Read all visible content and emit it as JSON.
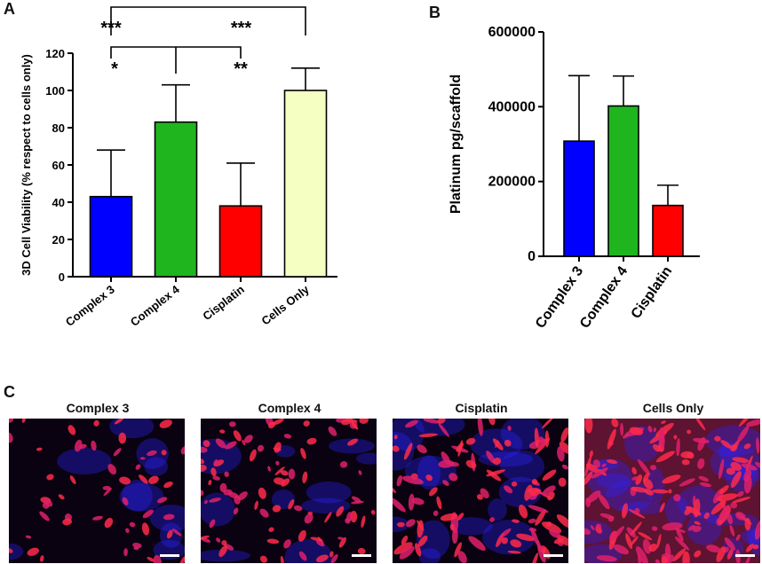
{
  "panels": {
    "a": "A",
    "b": "B",
    "c": "C"
  },
  "chart_data": [
    {
      "type": "bar",
      "ylabel": "3D Cell Viability (% respect to cells only)",
      "categories": [
        "Complex 3",
        "Complex 4",
        "Cisplatin",
        "Cells Only"
      ],
      "values": [
        43,
        83,
        38,
        100
      ],
      "errors": [
        25,
        20,
        23,
        12
      ],
      "colors": [
        "#0000ff",
        "#1fb51f",
        "#ff0000",
        "#f5ffc2"
      ],
      "ylim": [
        0,
        120
      ],
      "yticks": [
        0,
        20,
        40,
        60,
        80,
        100,
        120
      ],
      "annotations": [
        {
          "text": "***",
          "from": "Complex 3",
          "to": "Cells Only"
        },
        {
          "text": "***",
          "from": "Complex 4",
          "to": "Cells Only"
        },
        {
          "text": "*",
          "from": "Complex 3",
          "to": "Complex 4"
        },
        {
          "text": "**",
          "from": "Complex 4",
          "to": "Cisplatin"
        }
      ]
    },
    {
      "type": "bar",
      "ylabel": "Platinum pg/scaffold",
      "categories": [
        "Complex 3",
        "Complex 4",
        "Cisplatin"
      ],
      "values": [
        308000,
        402000,
        136000
      ],
      "errors": [
        175000,
        80000,
        54000
      ],
      "colors": [
        "#0000ff",
        "#1fb51f",
        "#ff0000"
      ],
      "ylim": [
        0,
        600000
      ],
      "yticks": [
        0,
        200000,
        400000,
        600000
      ]
    }
  ],
  "micrographs": [
    {
      "title": "Complex 3"
    },
    {
      "title": "Complex 4"
    },
    {
      "title": "Cisplatin"
    },
    {
      "title": "Cells Only"
    }
  ]
}
